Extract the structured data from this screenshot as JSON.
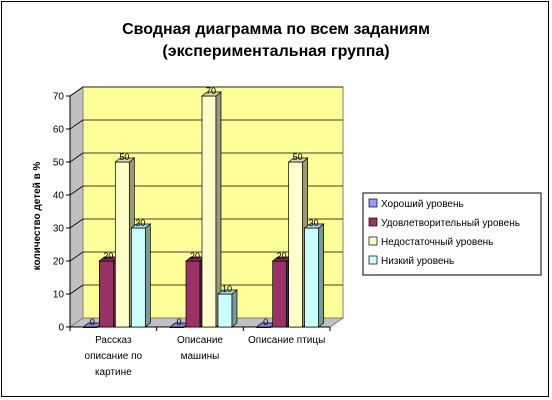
{
  "chart_data": {
    "type": "bar",
    "title_lines": [
      "Сводная диаграмма по всем заданиям",
      "(экспериментальная группа)"
    ],
    "ylabel": "количество детей в %",
    "xlabel": "",
    "ylim": [
      0,
      70
    ],
    "yticks": [
      0,
      10,
      20,
      30,
      40,
      50,
      60,
      70
    ],
    "grid": true,
    "legend_position": "right",
    "categories": [
      [
        "Рассказ",
        "описание по",
        "картине"
      ],
      [
        "Описание",
        "машины"
      ],
      [
        "Описание птицы"
      ]
    ],
    "series": [
      {
        "name": "Хороший уровень",
        "values": [
          0,
          0,
          0
        ],
        "color": "#9999FF"
      },
      {
        "name": "Удовлетворительный уровень",
        "values": [
          20,
          20,
          20
        ],
        "color": "#993366"
      },
      {
        "name": "Недостаточный уровень",
        "values": [
          50,
          70,
          50
        ],
        "color": "#FFFFCC"
      },
      {
        "name": "Низкий уровень",
        "values": [
          30,
          10,
          30
        ],
        "color": "#CCFFFF"
      }
    ],
    "data_labels": [
      [
        "0",
        "0",
        "0"
      ],
      [
        "20",
        "20",
        "20"
      ],
      [
        "50",
        "70",
        "50"
      ],
      [
        "30",
        "10",
        "30"
      ]
    ],
    "wall_color": "#FFFF99"
  }
}
